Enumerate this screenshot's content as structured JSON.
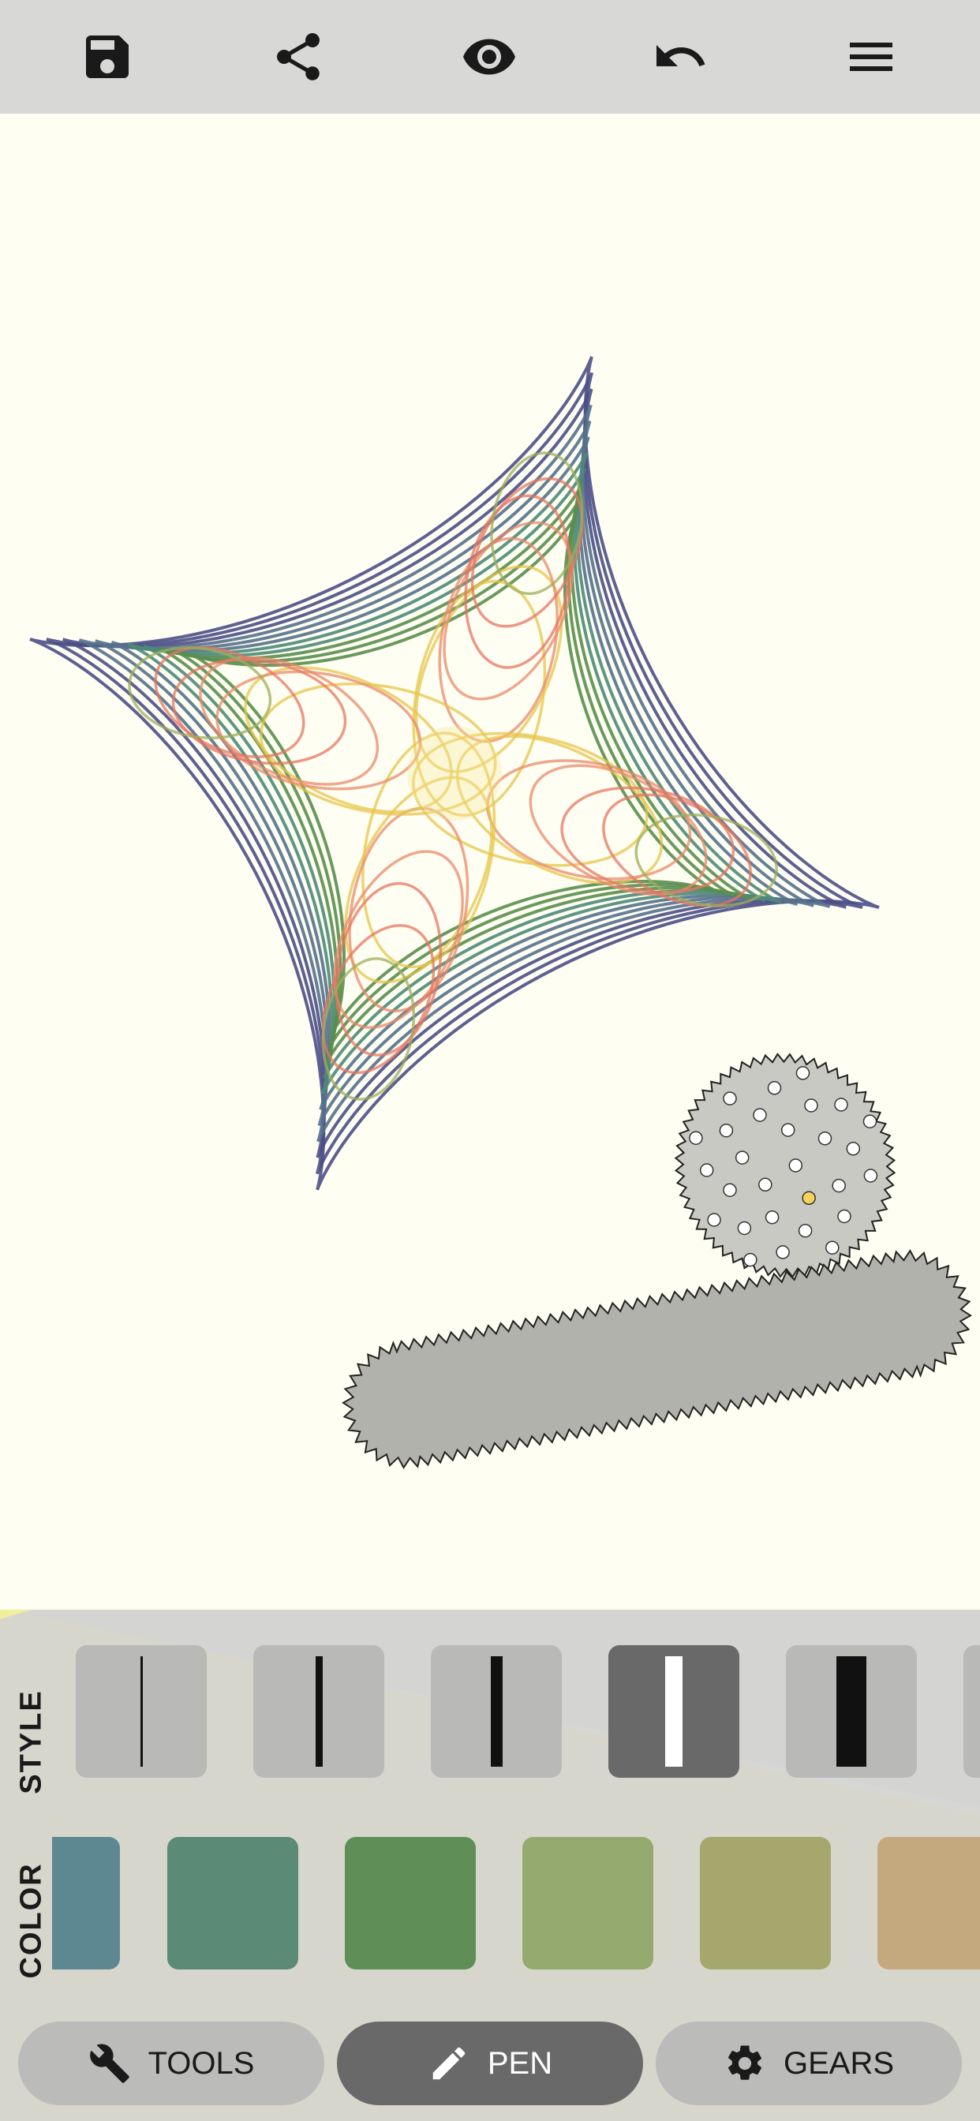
{
  "toolbar": {
    "icons": [
      "save-icon",
      "share-icon",
      "eye-icon",
      "undo-icon",
      "menu-icon"
    ]
  },
  "canvas": {
    "background": "#FEFEF2",
    "pattern_colors": [
      "#4B4F86",
      "#55718C",
      "#4E8A78",
      "#5A8E4E",
      "#9DAE5A",
      "#E7C44A",
      "#EA8A6A",
      "#E77560"
    ]
  },
  "panel": {
    "style_label": "STYLE",
    "color_label": "COLOR",
    "styles": [
      {
        "name": "hairline",
        "selected": false
      },
      {
        "name": "thin",
        "selected": false
      },
      {
        "name": "medium",
        "selected": false
      },
      {
        "name": "thick",
        "selected": true
      },
      {
        "name": "extra-thick",
        "selected": false
      }
    ],
    "colors": [
      "#5E8891",
      "#5B8B76",
      "#5F8E56",
      "#95AA6E",
      "#A5A76C",
      "#C4A97F"
    ]
  },
  "modes": {
    "tools": {
      "label": "TOOLS",
      "icon": "wrench-icon",
      "selected": false
    },
    "pen": {
      "label": "PEN",
      "icon": "pencil-icon",
      "selected": true
    },
    "gears": {
      "label": "GEARS",
      "icon": "gear-icon",
      "selected": false
    }
  }
}
